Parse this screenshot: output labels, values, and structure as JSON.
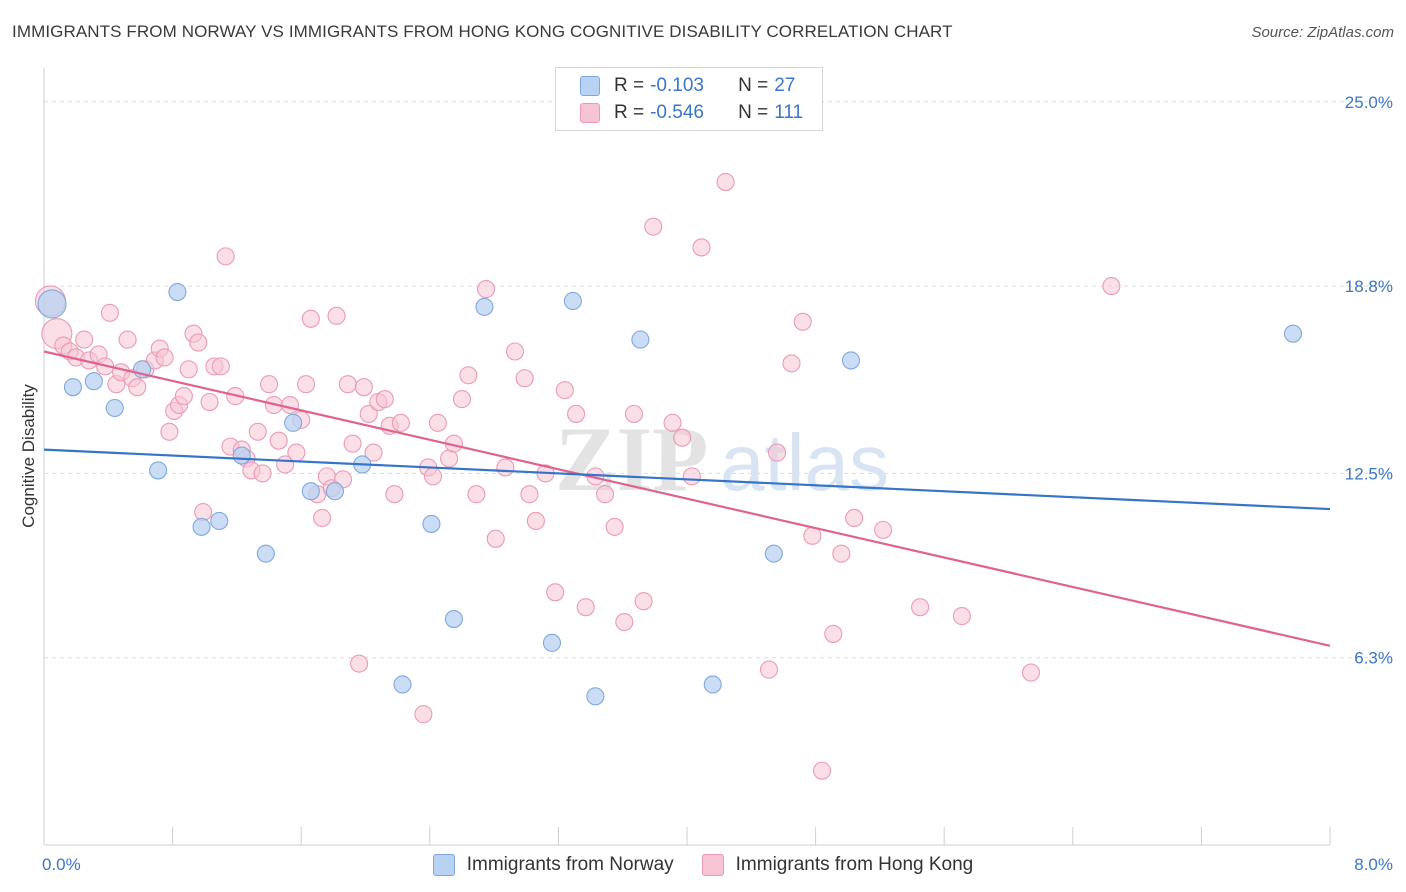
{
  "title": "IMMIGRANTS FROM NORWAY VS IMMIGRANTS FROM HONG KONG COGNITIVE DISABILITY CORRELATION CHART",
  "source": "Source: ZipAtlas.com",
  "watermark": {
    "zip": "ZIP",
    "atlas": "atlas"
  },
  "legend": {
    "r_label": "R =",
    "n_label": "N =",
    "norway": {
      "r": "-0.103",
      "n": "27"
    },
    "hongkong": {
      "r": "-0.546",
      "n": "111"
    }
  },
  "colors": {
    "norway_fill": "#b8d2f2",
    "norway_stroke": "#7fa9de",
    "norway_line": "#3474c9",
    "hongkong_fill": "#f7c4d4",
    "hongkong_stroke": "#ec9ab5",
    "hongkong_line": "#e0638f",
    "axis_label_blue": "#3a77c8"
  },
  "chart_data": {
    "type": "scatter",
    "title": "IMMIGRANTS FROM NORWAY VS IMMIGRANTS FROM HONG KONG COGNITIVE DISABILITY CORRELATION CHART",
    "xlabel": "",
    "ylabel": "Cognitive Disability",
    "xlim": [
      0,
      8
    ],
    "ylim": [
      0,
      25.8
    ],
    "x_tick_labels": [
      {
        "value": 0,
        "label": "0.0%"
      },
      {
        "value": 8,
        "label": "8.0%"
      }
    ],
    "y_tick_labels": [
      {
        "value": 6.3,
        "label": "6.3%"
      },
      {
        "value": 12.5,
        "label": "12.5%"
      },
      {
        "value": 18.8,
        "label": "18.8%"
      },
      {
        "value": 25.0,
        "label": "25.0%"
      }
    ],
    "grid": true,
    "legend_position": "top-center",
    "series": [
      {
        "name": "Immigrants from Norway",
        "trend": {
          "x": [
            0,
            8
          ],
          "y": [
            13.3,
            11.3
          ]
        },
        "points": [
          [
            0.05,
            18.2
          ],
          [
            0.18,
            15.4
          ],
          [
            0.31,
            15.6
          ],
          [
            0.44,
            14.7
          ],
          [
            0.61,
            16.0
          ],
          [
            0.71,
            12.6
          ],
          [
            0.83,
            18.6
          ],
          [
            0.98,
            10.7
          ],
          [
            1.09,
            10.9
          ],
          [
            1.23,
            13.1
          ],
          [
            1.38,
            9.8
          ],
          [
            1.55,
            14.2
          ],
          [
            1.66,
            11.9
          ],
          [
            1.81,
            11.9
          ],
          [
            1.98,
            12.8
          ],
          [
            2.23,
            5.4
          ],
          [
            2.41,
            10.8
          ],
          [
            2.55,
            7.6
          ],
          [
            2.74,
            18.1
          ],
          [
            3.16,
            6.8
          ],
          [
            3.29,
            18.3
          ],
          [
            3.43,
            5.0
          ],
          [
            3.71,
            17.0
          ],
          [
            4.16,
            5.4
          ],
          [
            4.54,
            9.8
          ],
          [
            5.02,
            16.3
          ],
          [
            7.77,
            17.2
          ]
        ]
      },
      {
        "name": "Immigrants from Hong Kong",
        "trend": {
          "x": [
            0,
            8
          ],
          "y": [
            16.6,
            6.7
          ]
        },
        "points": [
          [
            0.04,
            18.3
          ],
          [
            0.08,
            17.2
          ],
          [
            0.12,
            16.8
          ],
          [
            0.16,
            16.6
          ],
          [
            0.2,
            16.4
          ],
          [
            0.25,
            17.0
          ],
          [
            0.28,
            16.3
          ],
          [
            0.34,
            16.5
          ],
          [
            0.38,
            16.1
          ],
          [
            0.41,
            17.9
          ],
          [
            0.45,
            15.5
          ],
          [
            0.48,
            15.9
          ],
          [
            0.52,
            17.0
          ],
          [
            0.55,
            15.7
          ],
          [
            0.58,
            15.4
          ],
          [
            0.63,
            16.0
          ],
          [
            0.69,
            16.3
          ],
          [
            0.72,
            16.7
          ],
          [
            0.75,
            16.4
          ],
          [
            0.78,
            13.9
          ],
          [
            0.81,
            14.6
          ],
          [
            0.84,
            14.8
          ],
          [
            0.87,
            15.1
          ],
          [
            0.9,
            16.0
          ],
          [
            0.93,
            17.2
          ],
          [
            0.96,
            16.9
          ],
          [
            0.99,
            11.2
          ],
          [
            1.03,
            14.9
          ],
          [
            1.06,
            16.1
          ],
          [
            1.1,
            16.1
          ],
          [
            1.13,
            19.8
          ],
          [
            1.16,
            13.4
          ],
          [
            1.19,
            15.1
          ],
          [
            1.23,
            13.3
          ],
          [
            1.26,
            13.0
          ],
          [
            1.29,
            12.6
          ],
          [
            1.33,
            13.9
          ],
          [
            1.36,
            12.5
          ],
          [
            1.4,
            15.5
          ],
          [
            1.43,
            14.8
          ],
          [
            1.46,
            13.6
          ],
          [
            1.5,
            12.8
          ],
          [
            1.53,
            14.8
          ],
          [
            1.57,
            13.2
          ],
          [
            1.6,
            14.3
          ],
          [
            1.63,
            15.5
          ],
          [
            1.66,
            17.7
          ],
          [
            1.7,
            11.8
          ],
          [
            1.73,
            11.0
          ],
          [
            1.76,
            12.4
          ],
          [
            1.79,
            12.0
          ],
          [
            1.82,
            17.8
          ],
          [
            1.86,
            12.3
          ],
          [
            1.89,
            15.5
          ],
          [
            1.92,
            13.5
          ],
          [
            1.96,
            6.1
          ],
          [
            1.99,
            15.4
          ],
          [
            2.02,
            14.5
          ],
          [
            2.05,
            13.2
          ],
          [
            2.08,
            14.9
          ],
          [
            2.12,
            15.0
          ],
          [
            2.15,
            14.1
          ],
          [
            2.18,
            11.8
          ],
          [
            2.22,
            14.2
          ],
          [
            2.36,
            4.4
          ],
          [
            2.39,
            12.7
          ],
          [
            2.42,
            12.4
          ],
          [
            2.45,
            14.2
          ],
          [
            2.52,
            13.0
          ],
          [
            2.55,
            13.5
          ],
          [
            2.6,
            15.0
          ],
          [
            2.64,
            15.8
          ],
          [
            2.69,
            11.8
          ],
          [
            2.75,
            18.7
          ],
          [
            2.81,
            10.3
          ],
          [
            2.87,
            12.7
          ],
          [
            2.93,
            16.6
          ],
          [
            2.99,
            15.7
          ],
          [
            3.02,
            11.8
          ],
          [
            3.06,
            10.9
          ],
          [
            3.12,
            12.5
          ],
          [
            3.18,
            8.5
          ],
          [
            3.24,
            15.3
          ],
          [
            3.31,
            14.5
          ],
          [
            3.37,
            8.0
          ],
          [
            3.43,
            12.4
          ],
          [
            3.49,
            11.8
          ],
          [
            3.55,
            10.7
          ],
          [
            3.61,
            7.5
          ],
          [
            3.67,
            14.5
          ],
          [
            3.73,
            8.2
          ],
          [
            3.79,
            20.8
          ],
          [
            3.91,
            14.2
          ],
          [
            3.97,
            13.7
          ],
          [
            4.03,
            12.4
          ],
          [
            4.09,
            20.1
          ],
          [
            4.24,
            22.3
          ],
          [
            4.51,
            5.9
          ],
          [
            4.56,
            13.2
          ],
          [
            4.65,
            16.2
          ],
          [
            4.72,
            17.6
          ],
          [
            4.78,
            10.4
          ],
          [
            4.84,
            2.5
          ],
          [
            4.91,
            7.1
          ],
          [
            4.96,
            9.8
          ],
          [
            5.04,
            11.0
          ],
          [
            5.22,
            10.6
          ],
          [
            5.45,
            8.0
          ],
          [
            5.71,
            7.7
          ],
          [
            6.14,
            5.8
          ],
          [
            6.64,
            18.8
          ]
        ]
      }
    ]
  }
}
